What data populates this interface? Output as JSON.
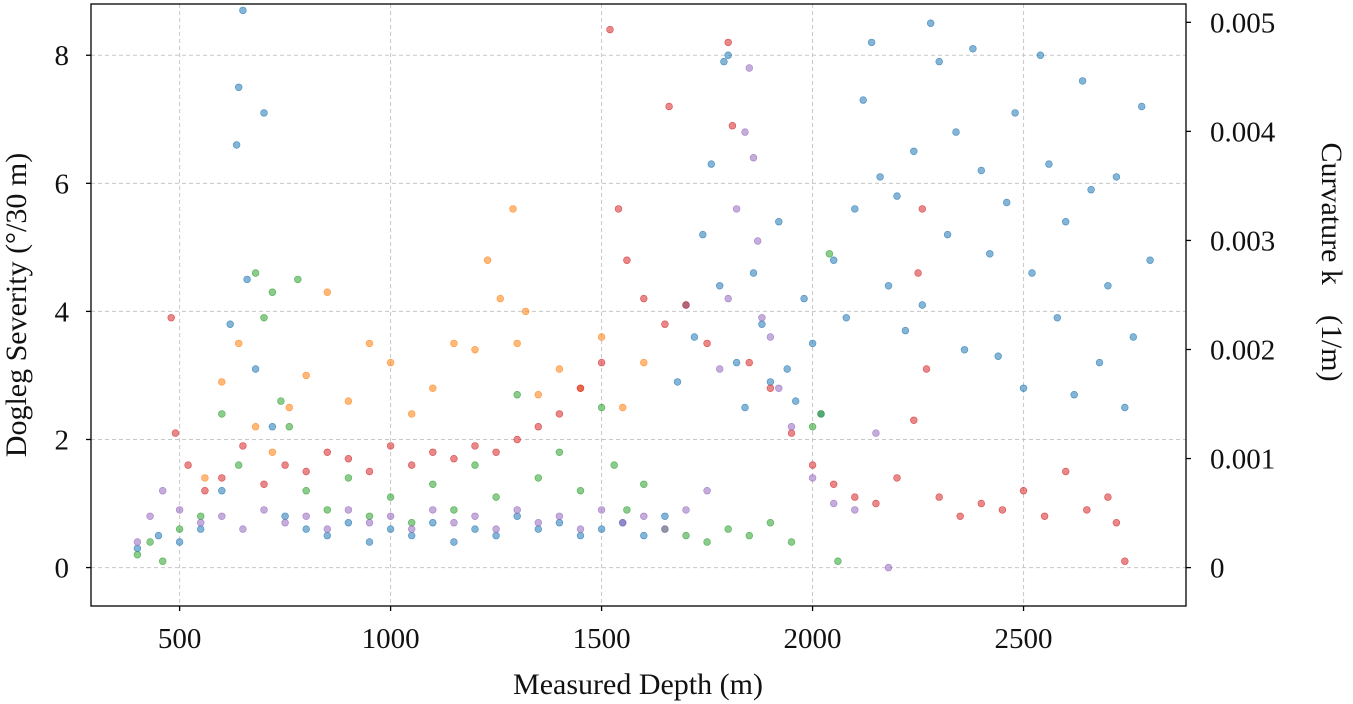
{
  "chart_data": {
    "type": "scatter",
    "xlabel": "Measured Depth (m)",
    "ylabel": "Dogleg Severity (°/30 m)",
    "y2label": "Curvature k　(1/m)",
    "xlim": [
      290,
      2885
    ],
    "ylim": [
      -0.6,
      8.8
    ],
    "y2lim": [
      -0.000352,
      0.005168
    ],
    "x_ticks": [
      "500",
      "1000",
      "1500",
      "2000",
      "2500"
    ],
    "x_tick_values": [
      500,
      1000,
      1500,
      2000,
      2500
    ],
    "y_ticks": [
      "0",
      "2",
      "4",
      "6",
      "8"
    ],
    "y_tick_values": [
      0,
      2,
      4,
      6,
      8
    ],
    "y2_ticks": [
      "0",
      "0.001",
      "0.002",
      "0.003",
      "0.004",
      "0.005"
    ],
    "y2_tick_values": [
      0,
      0.001,
      0.002,
      0.003,
      0.004,
      0.005
    ],
    "grid": true,
    "legend": "none",
    "series": [
      {
        "name": "blue",
        "color": "#1f77b4",
        "x": [
          400,
          450,
          500,
          550,
          600,
          620,
          635,
          640,
          650,
          660,
          680,
          700,
          720,
          750,
          800,
          850,
          900,
          950,
          1000,
          1050,
          1100,
          1150,
          1200,
          1250,
          1300,
          1350,
          1400,
          1450,
          1500,
          1550,
          1600,
          1650,
          1680,
          1700,
          1720,
          1740,
          1760,
          1780,
          1790,
          1800,
          1820,
          1840,
          1860,
          1880,
          1900,
          1920,
          1940,
          1960,
          1980,
          2000,
          2020,
          2050,
          2080,
          2100,
          2120,
          2140,
          2160,
          2180,
          2200,
          2220,
          2240,
          2260,
          2280,
          2300,
          2320,
          2340,
          2360,
          2380,
          2400,
          2420,
          2440,
          2460,
          2480,
          2500,
          2520,
          2540,
          2560,
          2580,
          2600,
          2620,
          2640,
          2660,
          2680,
          2700,
          2720,
          2740,
          2760,
          2780,
          2800
        ],
        "y": [
          0.3,
          0.5,
          0.4,
          0.6,
          1.2,
          3.8,
          6.6,
          7.5,
          8.7,
          4.5,
          3.1,
          7.1,
          2.2,
          0.8,
          0.6,
          0.5,
          0.7,
          0.4,
          0.6,
          0.5,
          0.7,
          0.4,
          0.6,
          0.5,
          0.8,
          0.6,
          0.7,
          0.5,
          0.6,
          0.7,
          0.5,
          0.8,
          2.9,
          4.1,
          3.6,
          5.2,
          6.3,
          4.4,
          7.9,
          8.0,
          3.2,
          2.5,
          4.6,
          3.8,
          2.9,
          5.4,
          3.1,
          2.6,
          4.2,
          3.5,
          2.4,
          4.8,
          3.9,
          5.6,
          7.3,
          8.2,
          6.1,
          4.4,
          5.8,
          3.7,
          6.5,
          4.1,
          8.5,
          7.9,
          5.2,
          6.8,
          3.4,
          8.1,
          6.2,
          4.9,
          3.3,
          5.7,
          7.1,
          2.8,
          4.6,
          8.0,
          6.3,
          3.9,
          5.4,
          2.7,
          7.6,
          5.9,
          3.2,
          4.4,
          6.1,
          2.5,
          3.6,
          7.2,
          4.8
        ]
      },
      {
        "name": "orange",
        "color": "#ff7f0e",
        "x": [
          560,
          600,
          640,
          680,
          720,
          760,
          800,
          850,
          900,
          950,
          1000,
          1050,
          1100,
          1150,
          1200,
          1230,
          1260,
          1290,
          1300,
          1320,
          1350,
          1400,
          1450,
          1500,
          1550,
          1600
        ],
        "y": [
          1.4,
          2.9,
          3.5,
          2.2,
          1.8,
          2.5,
          3.0,
          4.3,
          2.6,
          3.5,
          3.2,
          2.4,
          2.8,
          3.5,
          3.4,
          4.8,
          4.2,
          5.6,
          3.5,
          4.0,
          2.7,
          3.1,
          2.8,
          3.6,
          2.5,
          3.2
        ]
      },
      {
        "name": "green",
        "color": "#2ca02c",
        "x": [
          400,
          430,
          460,
          500,
          550,
          600,
          640,
          680,
          700,
          720,
          740,
          760,
          780,
          800,
          850,
          900,
          950,
          1000,
          1050,
          1100,
          1150,
          1200,
          1250,
          1300,
          1350,
          1400,
          1450,
          1500,
          1530,
          1560,
          1600,
          1650,
          1700,
          1750,
          1800,
          1850,
          1900,
          1950,
          2000,
          2020,
          2040,
          2060
        ],
        "y": [
          0.2,
          0.4,
          0.1,
          0.6,
          0.8,
          2.4,
          1.6,
          4.6,
          3.9,
          4.3,
          2.6,
          2.2,
          4.5,
          1.2,
          0.9,
          1.4,
          0.8,
          1.1,
          0.7,
          1.3,
          0.9,
          1.6,
          1.1,
          2.7,
          1.4,
          1.8,
          1.2,
          2.5,
          1.6,
          0.9,
          1.3,
          0.6,
          0.5,
          0.4,
          0.6,
          0.5,
          0.7,
          0.4,
          2.2,
          2.4,
          4.9,
          0.1
        ]
      },
      {
        "name": "red",
        "color": "#d62728",
        "x": [
          480,
          490,
          520,
          560,
          600,
          650,
          700,
          750,
          800,
          850,
          900,
          950,
          1000,
          1050,
          1100,
          1150,
          1200,
          1250,
          1300,
          1350,
          1400,
          1450,
          1500,
          1520,
          1540,
          1560,
          1600,
          1650,
          1660,
          1700,
          1750,
          1800,
          1810,
          1850,
          1900,
          1950,
          2000,
          2050,
          2100,
          2150,
          2200,
          2240,
          2250,
          2260,
          2270,
          2300,
          2350,
          2400,
          2450,
          2500,
          2550,
          2600,
          2650,
          2700,
          2720,
          2740
        ],
        "y": [
          3.9,
          2.1,
          1.6,
          1.2,
          1.4,
          1.9,
          1.3,
          1.6,
          1.5,
          1.8,
          1.7,
          1.5,
          1.9,
          1.6,
          1.8,
          1.7,
          1.9,
          1.8,
          2.0,
          2.2,
          2.4,
          2.8,
          3.2,
          8.4,
          5.6,
          4.8,
          4.2,
          3.8,
          7.2,
          4.1,
          3.5,
          8.2,
          6.9,
          3.2,
          2.8,
          2.1,
          1.6,
          1.3,
          1.1,
          1.0,
          1.4,
          2.3,
          4.6,
          5.6,
          3.1,
          1.1,
          0.8,
          1.0,
          0.9,
          1.2,
          0.8,
          1.5,
          0.9,
          1.1,
          0.7,
          0.1
        ]
      },
      {
        "name": "purple",
        "color": "#9467bd",
        "x": [
          400,
          430,
          460,
          500,
          550,
          600,
          650,
          700,
          750,
          800,
          850,
          900,
          950,
          1000,
          1050,
          1100,
          1150,
          1200,
          1250,
          1300,
          1350,
          1400,
          1450,
          1500,
          1550,
          1600,
          1650,
          1700,
          1750,
          1780,
          1800,
          1820,
          1840,
          1850,
          1860,
          1870,
          1880,
          1900,
          1920,
          1950,
          2000,
          2050,
          2100,
          2150,
          2180
        ],
        "y": [
          0.4,
          0.8,
          1.2,
          0.9,
          0.7,
          0.8,
          0.6,
          0.9,
          0.7,
          0.8,
          0.6,
          0.9,
          0.7,
          0.8,
          0.6,
          0.9,
          0.7,
          0.8,
          0.6,
          0.9,
          0.7,
          0.8,
          0.6,
          0.9,
          0.7,
          0.8,
          0.6,
          0.9,
          1.2,
          3.1,
          4.2,
          5.6,
          6.8,
          7.8,
          6.4,
          5.1,
          3.9,
          3.6,
          2.8,
          2.2,
          1.4,
          1.0,
          0.9,
          2.1,
          0.0
        ]
      }
    ]
  }
}
